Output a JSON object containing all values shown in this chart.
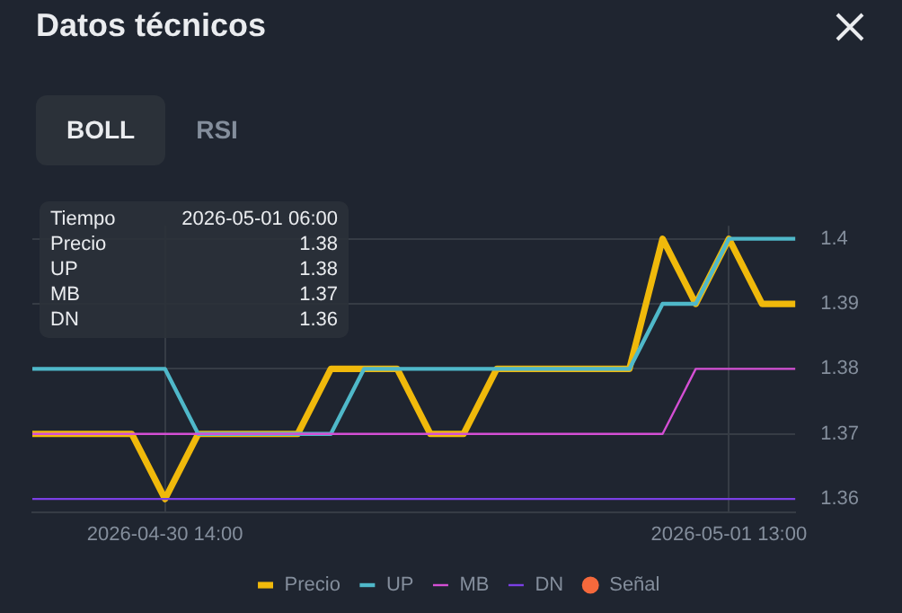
{
  "chart_data": {
    "type": "line",
    "title": "Datos técnicos",
    "categories": [
      null,
      null,
      null,
      null,
      "2026-04-30 14:00",
      null,
      null,
      null,
      null,
      null,
      null,
      null,
      null,
      null,
      null,
      null,
      null,
      null,
      null,
      null,
      null,
      "2026-05-01 13:00",
      null,
      null
    ],
    "series": [
      {
        "name": "Precio",
        "color": "#f0b90b",
        "values": [
          1.37,
          1.37,
          1.37,
          1.37,
          1.36,
          1.37,
          1.37,
          1.37,
          1.37,
          1.38,
          1.38,
          1.38,
          1.37,
          1.37,
          1.38,
          1.38,
          1.38,
          1.38,
          1.38,
          1.4,
          1.39,
          1.4,
          1.39,
          1.39
        ]
      },
      {
        "name": "UP",
        "color": "#4fb8c9",
        "values": [
          1.38,
          1.38,
          1.38,
          1.38,
          1.38,
          1.37,
          1.37,
          1.37,
          1.37,
          1.37,
          1.38,
          1.38,
          1.38,
          1.38,
          1.38,
          1.38,
          1.38,
          1.38,
          1.38,
          1.39,
          1.39,
          1.4,
          1.4,
          1.4
        ]
      },
      {
        "name": "MB",
        "color": "#d44fd4",
        "values": [
          1.37,
          1.37,
          1.37,
          1.37,
          1.37,
          1.37,
          1.37,
          1.37,
          1.37,
          1.37,
          1.37,
          1.37,
          1.37,
          1.37,
          1.37,
          1.37,
          1.37,
          1.37,
          1.37,
          1.37,
          1.38,
          1.38,
          1.38,
          1.38
        ]
      },
      {
        "name": "DN",
        "color": "#7b3fe4",
        "values": [
          1.36,
          1.36,
          1.36,
          1.36,
          1.36,
          1.36,
          1.36,
          1.36,
          1.36,
          1.36,
          1.36,
          1.36,
          1.36,
          1.36,
          1.36,
          1.36,
          1.36,
          1.36,
          1.36,
          1.36,
          1.36,
          1.36,
          1.36,
          1.36
        ]
      },
      {
        "name": "Señal",
        "type": "scatter",
        "color": "#f5693c",
        "values": [
          null,
          null,
          null,
          null,
          null,
          null,
          null,
          null,
          null,
          null,
          null,
          null,
          null,
          null,
          null,
          null,
          null,
          null,
          null,
          null,
          null,
          null,
          null,
          null
        ]
      }
    ],
    "ylim": [
      1.358,
      1.402
    ],
    "yticks": [
      1.36,
      1.37,
      1.38,
      1.39,
      1.4
    ],
    "grid": true,
    "legend": "bottom",
    "marker": "none",
    "line_style": "solid",
    "annotations": [
      "BOLL",
      "RSI",
      "Tiempo",
      "2026-05-01 06:00",
      "Precio",
      "1.38",
      "UP",
      "1.38",
      "MB",
      "1.37",
      "DN",
      "1.36"
    ]
  }
}
